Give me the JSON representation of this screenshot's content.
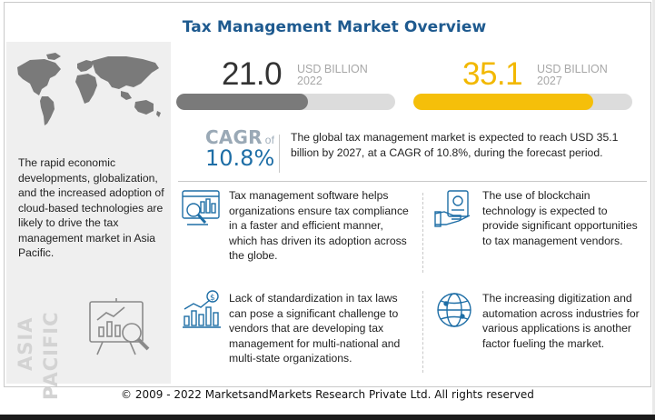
{
  "title": "Tax Management Market Overview",
  "left_panel": {
    "text": "The rapid economic developments, globalization, and the increased adoption of cloud-based technologies are likely to drive the tax management market in Asia Pacific.",
    "region_line1": "ASIA",
    "region_line2": "PACIFIC",
    "icons": [
      "world-map-icon",
      "chart-analysis-icon"
    ]
  },
  "stats": {
    "start": {
      "value": "21.0",
      "unit": "USD BILLION",
      "year": "2022",
      "bar_fraction": 0.6,
      "color": "#333333",
      "bar_color": "#7a7a7a"
    },
    "end": {
      "value": "35.1",
      "unit": "USD BILLION",
      "year": "2027",
      "bar_fraction": 0.82,
      "color": "#f2b800",
      "bar_color": "#f5bf0a"
    }
  },
  "cagr": {
    "label": "CAGR",
    "of": "of",
    "value": "10.8%",
    "description": "The global tax management market is expected to reach USD 35.1 billion by 2027, at a CAGR of 10.8%, during the forecast period."
  },
  "features": [
    {
      "icon": "software-screen-icon",
      "text": "Tax management software helps organizations ensure tax compliance in a faster and efficient manner, which has driven its adoption across the globe."
    },
    {
      "icon": "blockchain-hand-icon",
      "text": "The use of blockchain technology is expected to provide significant opportunities to tax management vendors."
    },
    {
      "icon": "regulation-chart-icon",
      "text": "Lack of standardization in tax laws can pose a significant challenge to vendors that are developing tax management for multi-national and multi-state organizations."
    },
    {
      "icon": "globe-digital-icon",
      "text": "The increasing digitization and automation across industries for various applications is another factor fueling the market."
    }
  ],
  "footer": "© 2009 - 2022 MarketsandMarkets Research Private Ltd. All rights reserved"
}
